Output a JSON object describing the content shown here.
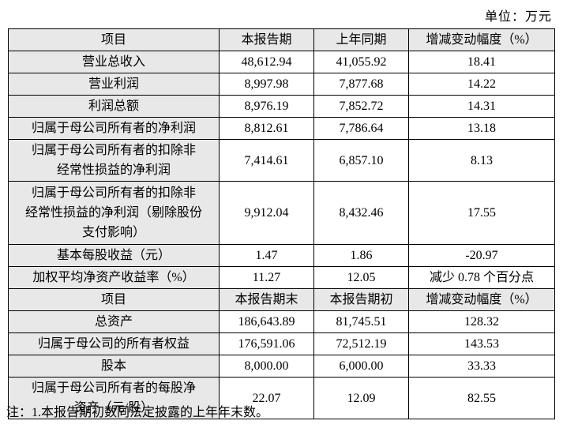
{
  "unit_label": "单位：万元",
  "note": "注：1.本报告期初数同法定披露的上年年末数。",
  "table": {
    "rows": [
      {
        "type": "header",
        "cells": [
          "项目",
          "本报告期",
          "上年同期",
          "增减变动幅度（%）"
        ]
      },
      {
        "type": "data",
        "cells": [
          "营业总收入",
          "48,612.94",
          "41,055.92",
          "18.41"
        ]
      },
      {
        "type": "data",
        "cells": [
          "营业利润",
          "8,997.98",
          "7,877.68",
          "14.22"
        ]
      },
      {
        "type": "data",
        "cells": [
          "利润总额",
          "8,976.19",
          "7,852.72",
          "14.31"
        ]
      },
      {
        "type": "data",
        "cells": [
          "归属于母公司所有者的净利润",
          "8,812.61",
          "7,786.64",
          "13.18"
        ]
      },
      {
        "type": "data",
        "cells": [
          "归属于母公司所有者的扣除非\n经常性损益的净利润",
          "7,414.61",
          "6,857.10",
          "8.13"
        ]
      },
      {
        "type": "data",
        "cells": [
          "归属于母公司所有者的扣除非\n经常性损益的净利润（剔除股份\n支付影响）",
          "9,912.04",
          "8,432.46",
          "17.55"
        ]
      },
      {
        "type": "data",
        "cells": [
          "基本每股收益（元）",
          "1.47",
          "1.86",
          "-20.97"
        ]
      },
      {
        "type": "data",
        "cells": [
          "加权平均净资产收益率（%）",
          "11.27",
          "12.05",
          "减少 0.78 个百分点"
        ]
      },
      {
        "type": "header",
        "cells": [
          "项目",
          "本报告期末",
          "本报告期初",
          "增减变动幅度（%）"
        ]
      },
      {
        "type": "data",
        "cells": [
          "总资产",
          "186,643.89",
          "81,745.51",
          "128.32"
        ]
      },
      {
        "type": "data",
        "cells": [
          "归属于母公司的所有者权益",
          "176,591.06",
          "72,512.19",
          "143.53"
        ]
      },
      {
        "type": "data",
        "cells": [
          "股本",
          "8,000.00",
          "6,000.00",
          "33.33"
        ]
      },
      {
        "type": "data",
        "cells": [
          "归属于母公司所有者的每股净\n资产（元/股）",
          "22.07",
          "12.09",
          "82.55"
        ]
      }
    ]
  }
}
